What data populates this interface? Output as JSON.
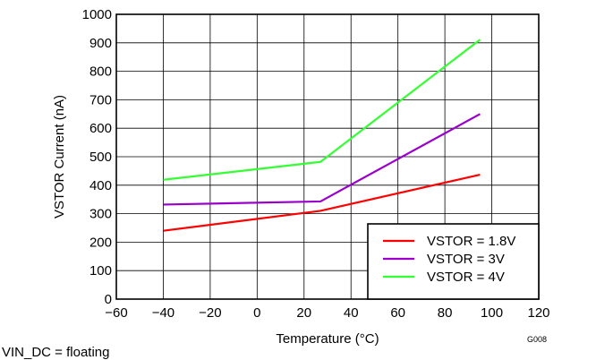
{
  "chart_data": {
    "type": "line",
    "title": "",
    "xlabel": "Temperature (°C)",
    "ylabel": "VSTOR Current (nA)",
    "xlim": [
      -60,
      120
    ],
    "ylim": [
      0,
      1000
    ],
    "x_ticks": [
      -60,
      -40,
      -20,
      0,
      20,
      40,
      60,
      80,
      100,
      120
    ],
    "y_ticks": [
      0,
      100,
      200,
      300,
      400,
      500,
      600,
      700,
      800,
      900,
      1000
    ],
    "x_tick_labels": [
      "−60",
      "−40",
      "−20",
      "0",
      "20",
      "40",
      "60",
      "80",
      "100",
      "120"
    ],
    "y_tick_labels": [
      "0",
      "100",
      "200",
      "300",
      "400",
      "500",
      "600",
      "700",
      "800",
      "900",
      "1000"
    ],
    "grid": true,
    "legend_position": "bottom-right",
    "series": [
      {
        "name": "VSTOR = 1.8V",
        "color": "#ff0000",
        "x": [
          -40,
          27,
          95
        ],
        "y": [
          240,
          310,
          437
        ]
      },
      {
        "name": "VSTOR = 3V",
        "color": "#9900cc",
        "x": [
          -40,
          27,
          95
        ],
        "y": [
          332,
          343,
          650
        ]
      },
      {
        "name": "VSTOR = 4V",
        "color": "#33ff33",
        "x": [
          -40,
          27,
          95
        ],
        "y": [
          419,
          482,
          911
        ]
      }
    ],
    "figure_code": "G008"
  },
  "footnote": "VIN_DC = floating"
}
